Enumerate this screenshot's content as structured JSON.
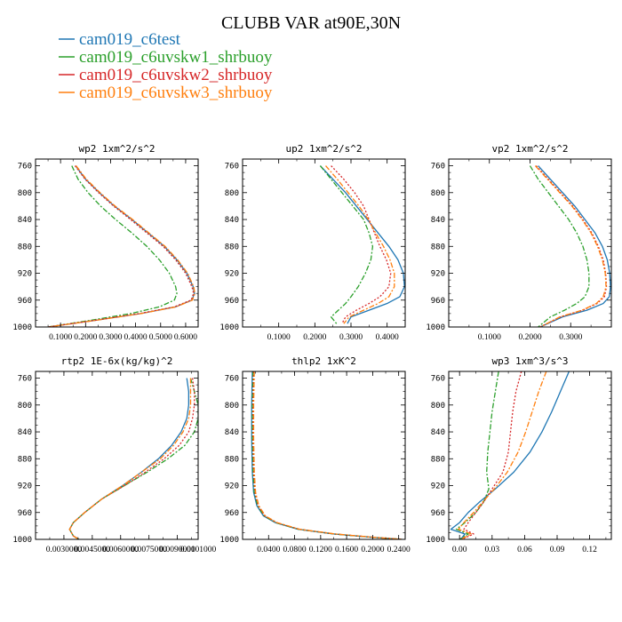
{
  "figure": {
    "title": "CLUBB VAR at90E,30N"
  },
  "legend": [
    {
      "name": "cam019_c6test",
      "color": "#1f77b4",
      "dash": ""
    },
    {
      "name": "cam019_c6uvskw1_shrbuoy",
      "color": "#2ca02c",
      "dash": "6,2,2,2"
    },
    {
      "name": "cam019_c6uvskw2_shrbuoy",
      "color": "#d62728",
      "dash": "2,2"
    },
    {
      "name": "cam019_c6uvskw3_shrbuoy",
      "color": "#ff7f0e",
      "dash": "6,2,2,2"
    }
  ],
  "chart_data": [
    {
      "type": "line",
      "title": "wp2  1xm^2/s^2",
      "xlim": [
        0,
        0.65
      ],
      "ylim": [
        1000,
        750
      ],
      "xticks": [
        0.1,
        0.2,
        0.3,
        0.4,
        0.5,
        0.6
      ],
      "xtick_labels": [
        "0.1000",
        "0.2000",
        "0.3000",
        "0.4000",
        "0.5000",
        "0.6000"
      ],
      "yticks": [
        760,
        800,
        840,
        880,
        920,
        960,
        1000
      ],
      "ytick_labels": [
        "760",
        "800",
        "840",
        "880",
        "920",
        "960",
        "1000"
      ],
      "y": [
        760,
        780,
        800,
        820,
        840,
        860,
        880,
        900,
        920,
        940,
        950,
        960,
        970,
        980,
        990,
        1000
      ],
      "series": [
        {
          "values": [
            0.16,
            0.2,
            0.255,
            0.315,
            0.385,
            0.45,
            0.515,
            0.565,
            0.605,
            0.63,
            0.635,
            0.625,
            0.56,
            0.42,
            0.24,
            0.05
          ]
        },
        {
          "values": [
            0.145,
            0.17,
            0.21,
            0.26,
            0.32,
            0.385,
            0.445,
            0.495,
            0.535,
            0.56,
            0.565,
            0.555,
            0.495,
            0.38,
            0.22,
            0.05
          ]
        },
        {
          "values": [
            0.158,
            0.198,
            0.252,
            0.312,
            0.38,
            0.445,
            0.51,
            0.56,
            0.6,
            0.625,
            0.632,
            0.622,
            0.555,
            0.415,
            0.238,
            0.05
          ]
        },
        {
          "values": [
            0.162,
            0.203,
            0.258,
            0.318,
            0.388,
            0.453,
            0.518,
            0.568,
            0.608,
            0.632,
            0.637,
            0.627,
            0.562,
            0.422,
            0.242,
            0.05
          ]
        }
      ]
    },
    {
      "type": "line",
      "title": "up2  1xm^2/s^2",
      "xlim": [
        0,
        0.45
      ],
      "ylim": [
        1000,
        750
      ],
      "xticks": [
        0.1,
        0.2,
        0.3,
        0.4
      ],
      "xtick_labels": [
        "0.1000",
        "0.2000",
        "0.3000",
        "0.4000"
      ],
      "yticks": [
        760,
        800,
        840,
        880,
        920,
        960,
        1000
      ],
      "ytick_labels": [
        "760",
        "800",
        "840",
        "880",
        "920",
        "960",
        "1000"
      ],
      "y": [
        760,
        780,
        800,
        820,
        840,
        860,
        880,
        900,
        920,
        940,
        955,
        965,
        975,
        985,
        995
      ],
      "series": [
        {
          "values": [
            0.215,
            0.25,
            0.285,
            0.315,
            0.345,
            0.375,
            0.405,
            0.43,
            0.445,
            0.448,
            0.435,
            0.4,
            0.35,
            0.3,
            0.29
          ]
        },
        {
          "values": [
            0.215,
            0.245,
            0.275,
            0.305,
            0.335,
            0.35,
            0.36,
            0.355,
            0.34,
            0.32,
            0.3,
            0.285,
            0.265,
            0.245,
            0.26
          ]
        },
        {
          "values": [
            0.245,
            0.28,
            0.31,
            0.335,
            0.35,
            0.365,
            0.38,
            0.398,
            0.41,
            0.405,
            0.38,
            0.35,
            0.315,
            0.285,
            0.275
          ]
        },
        {
          "values": [
            0.23,
            0.262,
            0.292,
            0.322,
            0.348,
            0.368,
            0.39,
            0.408,
            0.42,
            0.42,
            0.405,
            0.375,
            0.335,
            0.295,
            0.28
          ]
        }
      ]
    },
    {
      "type": "line",
      "title": "vp2  1xm^2/s^2",
      "xlim": [
        0,
        0.4
      ],
      "ylim": [
        1000,
        750
      ],
      "xticks": [
        0.1,
        0.2,
        0.3
      ],
      "xtick_labels": [
        "0.1000",
        "0.2000",
        "0.3000"
      ],
      "yticks": [
        760,
        800,
        840,
        880,
        920,
        960,
        1000
      ],
      "ytick_labels": [
        "760",
        "800",
        "840",
        "880",
        "920",
        "960",
        "1000"
      ],
      "y": [
        760,
        780,
        800,
        820,
        840,
        860,
        880,
        900,
        920,
        940,
        955,
        965,
        975,
        985,
        1000
      ],
      "series": [
        {
          "values": [
            0.22,
            0.25,
            0.28,
            0.31,
            0.335,
            0.36,
            0.378,
            0.39,
            0.396,
            0.398,
            0.395,
            0.38,
            0.34,
            0.28,
            0.225
          ]
        },
        {
          "values": [
            0.2,
            0.22,
            0.245,
            0.27,
            0.295,
            0.315,
            0.33,
            0.34,
            0.345,
            0.345,
            0.335,
            0.315,
            0.285,
            0.25,
            0.22
          ]
        },
        {
          "values": [
            0.215,
            0.245,
            0.275,
            0.305,
            0.33,
            0.352,
            0.368,
            0.38,
            0.386,
            0.388,
            0.383,
            0.365,
            0.33,
            0.275,
            0.225
          ]
        },
        {
          "values": [
            0.213,
            0.243,
            0.273,
            0.303,
            0.328,
            0.35,
            0.366,
            0.378,
            0.385,
            0.387,
            0.38,
            0.363,
            0.328,
            0.273,
            0.225
          ]
        }
      ]
    },
    {
      "type": "line",
      "title": "rtp2  1E-6x(kg/kg)^2",
      "xlim": [
        0.0015,
        0.0101
      ],
      "ylim": [
        1000,
        750
      ],
      "xticks": [
        0.003,
        0.0045,
        0.006,
        0.0075,
        0.009,
        0.0101
      ],
      "xtick_labels": [
        "0.0030000",
        "0.0045000",
        "0.0060000",
        "0.0075000",
        "0.0090000",
        "0.0101000"
      ],
      "yticks": [
        760,
        800,
        840,
        880,
        920,
        960,
        1000
      ],
      "ytick_labels": [
        "760",
        "800",
        "840",
        "880",
        "920",
        "960",
        "1000"
      ],
      "y": [
        760,
        780,
        800,
        820,
        840,
        860,
        880,
        900,
        920,
        940,
        960,
        975,
        985,
        995,
        1000
      ],
      "series": [
        {
          "values": [
            0.0095,
            0.0096,
            0.0096,
            0.0095,
            0.0092,
            0.0087,
            0.008,
            0.0071,
            0.0061,
            0.005,
            0.0041,
            0.0035,
            0.0033,
            0.0035,
            0.0038
          ]
        },
        {
          "values": [
            0.0097,
            0.0099,
            0.0101,
            0.0101,
            0.0099,
            0.0094,
            0.0085,
            0.0074,
            0.0062,
            0.005,
            0.0041,
            0.0035,
            0.0033,
            0.0035,
            0.0038
          ]
        },
        {
          "values": [
            0.0098,
            0.0099,
            0.0099,
            0.0098,
            0.0096,
            0.0091,
            0.0083,
            0.0073,
            0.0062,
            0.005,
            0.0041,
            0.0035,
            0.0033,
            0.0035,
            0.0038
          ]
        },
        {
          "values": [
            0.0097,
            0.0097,
            0.0097,
            0.0096,
            0.0093,
            0.0088,
            0.0081,
            0.0071,
            0.0061,
            0.005,
            0.0041,
            0.0035,
            0.0033,
            0.0035,
            0.0038
          ]
        }
      ]
    },
    {
      "type": "line",
      "title": "thlp2  1xK^2",
      "xlim": [
        0,
        0.25
      ],
      "ylim": [
        1000,
        750
      ],
      "xticks": [
        0.04,
        0.08,
        0.12,
        0.16,
        0.2,
        0.24
      ],
      "xtick_labels": [
        "0.0400",
        "0.0800",
        "0.1200",
        "0.1600",
        "0.2000",
        "0.2400"
      ],
      "yticks": [
        760,
        800,
        840,
        880,
        920,
        960,
        1000
      ],
      "ytick_labels": [
        "760",
        "800",
        "840",
        "880",
        "920",
        "960",
        "1000"
      ],
      "y": [
        750,
        800,
        850,
        900,
        930,
        950,
        965,
        975,
        985,
        992,
        997,
        1000
      ],
      "series": [
        {
          "values": [
            0.015,
            0.014,
            0.014,
            0.015,
            0.017,
            0.022,
            0.032,
            0.05,
            0.085,
            0.14,
            0.2,
            0.245
          ]
        },
        {
          "values": [
            0.016,
            0.015,
            0.015,
            0.016,
            0.018,
            0.023,
            0.033,
            0.051,
            0.086,
            0.141,
            0.201,
            0.245
          ]
        },
        {
          "values": [
            0.017,
            0.016,
            0.016,
            0.017,
            0.019,
            0.024,
            0.034,
            0.052,
            0.087,
            0.142,
            0.202,
            0.245
          ]
        },
        {
          "values": [
            0.018,
            0.017,
            0.017,
            0.018,
            0.02,
            0.025,
            0.035,
            0.053,
            0.088,
            0.143,
            0.203,
            0.245
          ]
        }
      ]
    },
    {
      "type": "line",
      "title": "wp3  1xm^3/s^3",
      "xlim": [
        -0.01,
        0.14
      ],
      "ylim": [
        1000,
        750
      ],
      "xticks": [
        0.0,
        0.03,
        0.06,
        0.09,
        0.12
      ],
      "xtick_labels": [
        "0.00",
        "0.03",
        "0.06",
        "0.09",
        "0.12"
      ],
      "yticks": [
        760,
        800,
        840,
        880,
        920,
        960,
        1000
      ],
      "ytick_labels": [
        "760",
        "800",
        "840",
        "880",
        "920",
        "960",
        "1000"
      ],
      "y": [
        750,
        780,
        810,
        840,
        870,
        900,
        925,
        945,
        960,
        975,
        985,
        992,
        1000
      ],
      "series": [
        {
          "values": [
            0.101,
            0.093,
            0.085,
            0.076,
            0.065,
            0.05,
            0.033,
            0.018,
            0.008,
            0.0,
            -0.008,
            0.005,
            0.001
          ]
        },
        {
          "values": [
            0.036,
            0.033,
            0.03,
            0.028,
            0.026,
            0.025,
            0.027,
            0.022,
            0.015,
            0.005,
            -0.003,
            0.008,
            0.0
          ]
        },
        {
          "values": [
            0.057,
            0.052,
            0.049,
            0.047,
            0.045,
            0.04,
            0.03,
            0.022,
            0.015,
            0.008,
            0.004,
            0.013,
            0.002
          ]
        },
        {
          "values": [
            0.08,
            0.073,
            0.067,
            0.061,
            0.054,
            0.044,
            0.032,
            0.021,
            0.013,
            0.004,
            -0.001,
            0.011,
            0.001
          ]
        }
      ]
    }
  ]
}
